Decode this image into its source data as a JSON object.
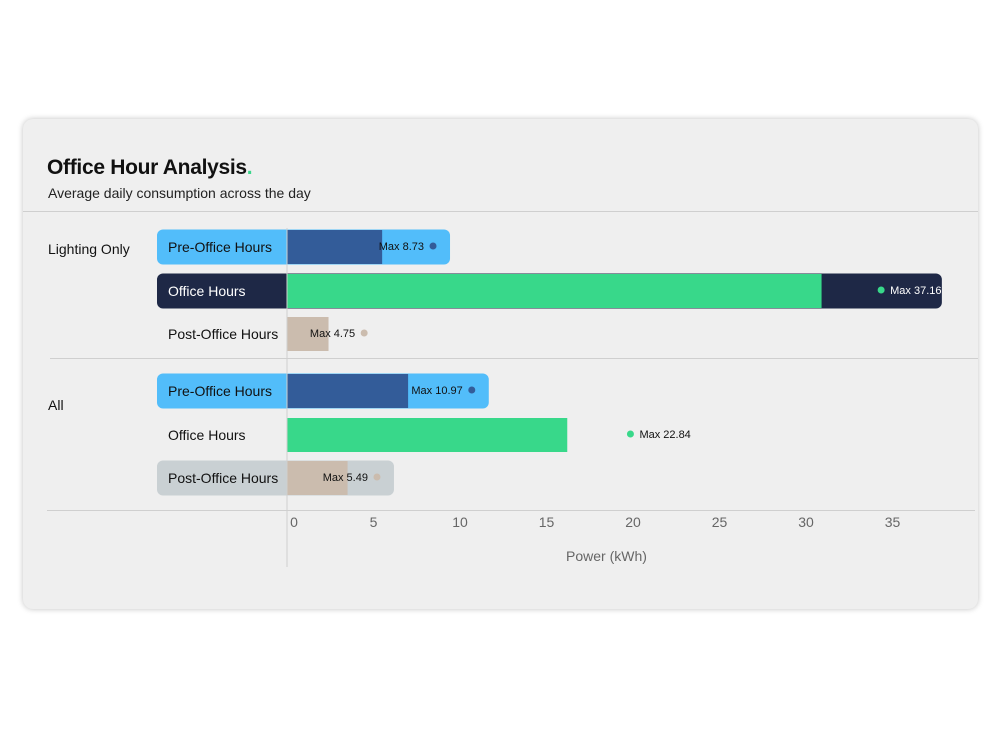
{
  "title": "Office Hour Analysis",
  "title_dot": ".",
  "subtitle": "Average daily consumption across the day",
  "colors": {
    "pre_office": "#335c99",
    "pre_office_band": "#52bdfa",
    "office": "#38d88a",
    "office_band": "#1e2846",
    "post_office": "#cbbcae",
    "post_office_band": "#c9d0d3"
  },
  "chart_data": {
    "type": "bar",
    "orientation": "horizontal",
    "title": "Office Hour Analysis",
    "subtitle": "Average daily consumption across the day",
    "xlabel": "Power (kWh)",
    "ylabel": "",
    "xlim": [
      0,
      37
    ],
    "x_ticks": [
      0,
      5,
      10,
      15,
      20,
      25,
      30,
      35
    ],
    "groups": [
      {
        "name": "Lighting Only",
        "rows": [
          {
            "label": "Pre-Office Hours",
            "value": 5.5,
            "max": 8.73,
            "max_label": "Max 8.73",
            "highlight": true,
            "color_key": "pre_office",
            "band_key": "pre_office_band",
            "dot_color": "#335c99",
            "label_color": "#111111",
            "max_text_color": "#111111"
          },
          {
            "label": "Office Hours",
            "value": 30.9,
            "max": 37.16,
            "max_label": "Max 37.16",
            "highlight": true,
            "color_key": "office",
            "band_key": "office_band",
            "dot_color": "#38d88a",
            "label_color": "#ffffff",
            "max_text_color": "#ffffff"
          },
          {
            "label": "Post-Office Hours",
            "value": 2.4,
            "max": 4.75,
            "max_label": "Max 4.75",
            "highlight": false,
            "color_key": "post_office",
            "band_key": "post_office_band",
            "dot_color": "#cbbcae",
            "label_color": "#111111",
            "max_text_color": "#111111"
          }
        ]
      },
      {
        "name": "All",
        "rows": [
          {
            "label": "Pre-Office Hours",
            "value": 7.0,
            "max": 10.97,
            "max_label": "Max 10.97",
            "highlight": true,
            "color_key": "pre_office",
            "band_key": "pre_office_band",
            "dot_color": "#335c99",
            "label_color": "#111111",
            "max_text_color": "#111111"
          },
          {
            "label": "Office Hours",
            "value": 16.2,
            "max": 22.84,
            "max_label": "Max 22.84",
            "highlight": false,
            "color_key": "office",
            "band_key": "office_band",
            "dot_color": "#38d88a",
            "label_color": "#111111",
            "max_text_color": "#111111"
          },
          {
            "label": "Post-Office Hours",
            "value": 3.5,
            "max": 5.49,
            "max_label": "Max 5.49",
            "highlight": true,
            "color_key": "post_office",
            "band_key": "post_office_band",
            "dot_color": "#cbbcae",
            "label_color": "#111111",
            "max_text_color": "#111111"
          }
        ]
      }
    ]
  }
}
